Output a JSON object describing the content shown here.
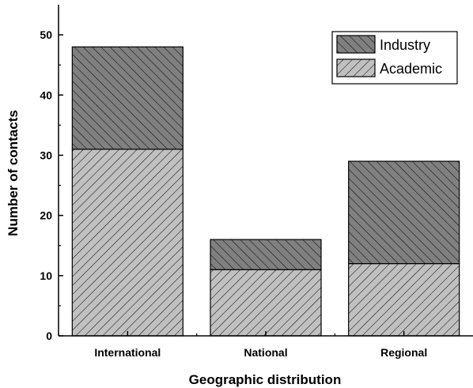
{
  "chart_data": {
    "type": "bar",
    "stacked": true,
    "title": "",
    "xlabel": "Geographic distribution",
    "ylabel": "Number of contacts",
    "categories": [
      "International",
      "National",
      "Regional"
    ],
    "series": [
      {
        "name": "Academic",
        "values": [
          31,
          11,
          12
        ],
        "color": "#c0c0c0",
        "hatch": "forward-diagonal"
      },
      {
        "name": "Industry",
        "values": [
          17,
          5,
          17
        ],
        "color": "#808080",
        "hatch": "back-diagonal"
      }
    ],
    "ylim": [
      0,
      55
    ],
    "yticks": [
      0,
      10,
      20,
      30,
      40,
      50
    ],
    "grid": false,
    "legend": "top-right",
    "legend_order": [
      "Industry",
      "Academic"
    ]
  }
}
